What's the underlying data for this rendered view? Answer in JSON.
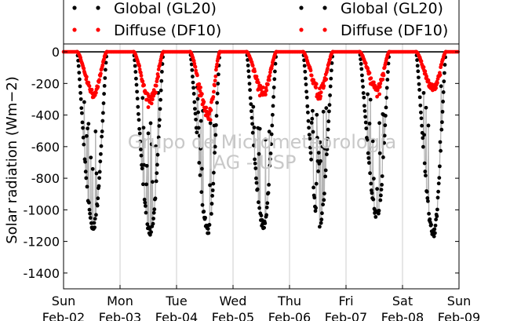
{
  "chart_data": {
    "type": "scatter",
    "title": "",
    "xlabel": "",
    "ylabel": "Solar radiation (Wm−2)",
    "ylim": [
      -1500,
      50
    ],
    "yticks": [
      0,
      -200,
      -400,
      -600,
      -800,
      -1000,
      -1200,
      -1400
    ],
    "xlim": [
      "2011-02-02",
      "2011-02-09"
    ],
    "x_tick_labels": [
      {
        "day": "Sun",
        "date": "Feb-02"
      },
      {
        "day": "Mon",
        "date": "Feb-03"
      },
      {
        "day": "Tue",
        "date": "Feb-04"
      },
      {
        "day": "Wed",
        "date": "Feb-05"
      },
      {
        "day": "Thu",
        "date": "Feb-06"
      },
      {
        "day": "Fri",
        "date": "Feb-07"
      },
      {
        "day": "Sat",
        "date": "Feb-08"
      },
      {
        "day": "Sun",
        "date": "Feb-09"
      }
    ],
    "grid": "vertical",
    "legend": {
      "placement": "top",
      "entries": [
        {
          "label": "Global (GL20)",
          "color": "#000000"
        },
        {
          "label": "Diffuse (DF10)",
          "color": "#ff0000"
        },
        {
          "label": "Global (GL20)",
          "color": "#000000"
        },
        {
          "label": "Diffuse (DF10)",
          "color": "#ff0000"
        }
      ]
    },
    "watermark": [
      "Grupo de Micrometeorologia",
      "IAG - USP"
    ],
    "series": [
      {
        "name": "Global (GL20)",
        "color": "#000000",
        "daily_peak": [
          {
            "date": "Feb-02",
            "peak_hour": 12.7,
            "peak": -1110
          },
          {
            "date": "Feb-03",
            "peak_hour": 13.0,
            "peak": -1150
          },
          {
            "date": "Feb-04",
            "peak_hour": 13.5,
            "peak": -1130
          },
          {
            "date": "Feb-05",
            "peak_hour": 13.0,
            "peak": -1100
          },
          {
            "date": "Feb-06",
            "peak_hour": 12.8,
            "peak": -1100
          },
          {
            "date": "Feb-07",
            "peak_hour": 13.3,
            "peak": -1040
          },
          {
            "date": "Feb-08",
            "peak_hour": 13.2,
            "peak": -1150
          }
        ]
      },
      {
        "name": "Diffuse (DF10)",
        "color": "#ff0000",
        "daily_peak": [
          {
            "date": "Feb-02",
            "peak_hour": 13.0,
            "peak": -260
          },
          {
            "date": "Feb-03",
            "peak_hour": 13.0,
            "peak": -300
          },
          {
            "date": "Feb-04",
            "peak_hour": 12.0,
            "peak": -390
          },
          {
            "date": "Feb-05",
            "peak_hour": 13.0,
            "peak": -250
          },
          {
            "date": "Feb-06",
            "peak_hour": 13.0,
            "peak": -250
          },
          {
            "date": "Feb-07",
            "peak_hour": 13.0,
            "peak": -230
          },
          {
            "date": "Feb-08",
            "peak_hour": 13.0,
            "peak": -230
          }
        ]
      }
    ]
  },
  "colors": {
    "global": "#000000",
    "diffuse": "#ff0000",
    "connector": "#b4b4b4",
    "grid": "#cccccc",
    "watermark": "#c8c8c8"
  }
}
